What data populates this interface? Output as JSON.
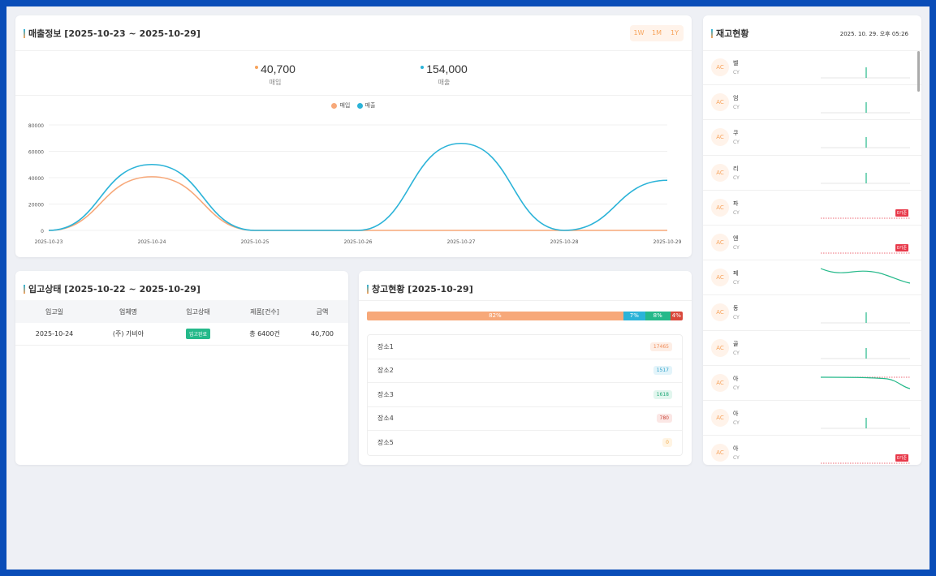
{
  "sales": {
    "title": "매출정보 [2025-10-23 ~ 2025-10-29]",
    "range_buttons": [
      "1W",
      "1M",
      "1Y"
    ],
    "kpis": [
      {
        "value": "40,700",
        "label": "매입",
        "color": "#f7a45c"
      },
      {
        "value": "154,000",
        "label": "매출",
        "color": "#2bb3d8"
      }
    ],
    "legend": [
      {
        "label": "매입",
        "color": "#f7a879"
      },
      {
        "label": "매출",
        "color": "#2bb3d8"
      }
    ]
  },
  "chart_data": {
    "type": "line",
    "x": [
      "2025-10-23",
      "2025-10-24",
      "2025-10-25",
      "2025-10-26",
      "2025-10-27",
      "2025-10-28",
      "2025-10-29"
    ],
    "ylim": [
      0,
      80000
    ],
    "yticks": [
      0,
      20000,
      40000,
      60000,
      80000
    ],
    "grid": true,
    "legend_position": "top-center",
    "series": [
      {
        "name": "매입",
        "values": [
          0,
          40700,
          0,
          0,
          0,
          0,
          0
        ],
        "color": "#f7a879"
      },
      {
        "name": "매출",
        "values": [
          0,
          50000,
          0,
          0,
          66000,
          0,
          38000
        ],
        "color": "#2bb3d8"
      }
    ]
  },
  "receiving": {
    "title": "입고상태 [2025-10-22 ~ 2025-10-29]",
    "columns": [
      "입고일",
      "업체명",
      "입고상태",
      "제품[건수]",
      "금액"
    ],
    "rows": [
      {
        "date": "2025-10-24",
        "vendor": "(주) 가비아",
        "status": "입고완료",
        "products": "총 6400건",
        "amount": "40,700"
      }
    ]
  },
  "warehouse": {
    "title": "창고현황 [2025-10-29]",
    "segments": [
      {
        "label": "82%",
        "pct": 82,
        "color": "#f7a879"
      },
      {
        "label": "7%",
        "pct": 7,
        "color": "#2bb3d8"
      },
      {
        "label": "8%",
        "pct": 8,
        "color": "#25b98a"
      },
      {
        "label": "4%",
        "pct": 4,
        "color": "#d9483b"
      }
    ],
    "locations": [
      {
        "name": "장소1",
        "count": "17465",
        "bg": "#fdeee6",
        "fg": "#f08d5a"
      },
      {
        "name": "장소2",
        "count": "1517",
        "bg": "#e3f4fa",
        "fg": "#2b9fc8"
      },
      {
        "name": "장소3",
        "count": "1618",
        "bg": "#e2f6ee",
        "fg": "#1fa877"
      },
      {
        "name": "장소4",
        "count": "780",
        "bg": "#fbe7e5",
        "fg": "#c9453a"
      },
      {
        "name": "장소5",
        "count": "0",
        "bg": "#fff4e3",
        "fg": "#f0a84a"
      }
    ]
  },
  "inventory": {
    "title": "재고현황",
    "date": "2025. 10. 29. 오후 05:26",
    "low_stock_label": "0기준",
    "items": [
      {
        "avatar": "AC",
        "name": "벨",
        "code": "CY",
        "spark": "spike",
        "badge": false
      },
      {
        "avatar": "AC",
        "name": "엄",
        "code": "CY",
        "spark": "spike",
        "badge": false
      },
      {
        "avatar": "AC",
        "name": "쿠",
        "code": "CY",
        "spark": "spike",
        "badge": false
      },
      {
        "avatar": "AC",
        "name": "리",
        "code": "CY",
        "spark": "spike",
        "badge": false
      },
      {
        "avatar": "AC",
        "name": "파",
        "code": "CY",
        "spark": "flat-red",
        "badge": true
      },
      {
        "avatar": "AC",
        "name": "엔",
        "code": "CY",
        "spark": "flat-red",
        "badge": true
      },
      {
        "avatar": "AC",
        "name": "페",
        "code": "CY",
        "spark": "wave",
        "badge": false
      },
      {
        "avatar": "AC",
        "name": "동",
        "code": "CY",
        "spark": "spike",
        "badge": false
      },
      {
        "avatar": "AC",
        "name": "골",
        "code": "CY",
        "spark": "spike",
        "badge": false
      },
      {
        "avatar": "AC",
        "name": "아",
        "code": "CY",
        "spark": "decline",
        "badge": false
      },
      {
        "avatar": "AC",
        "name": "아",
        "code": "CY",
        "spark": "spike",
        "badge": false
      },
      {
        "avatar": "AC",
        "name": "아",
        "code": "CY",
        "spark": "flat-red",
        "badge": true
      }
    ]
  }
}
